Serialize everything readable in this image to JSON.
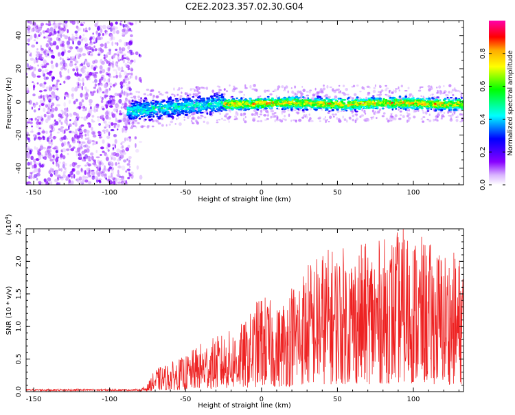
{
  "figure": {
    "title": "C2E2.2023.357.02.30.G04"
  },
  "colors": {
    "snr_line": "#ee2222",
    "colormap": [
      "#ff00ff",
      "#ff0000",
      "#ffaa00",
      "#ffff00",
      "#00ff00",
      "#00ffff",
      "#0000ff",
      "#8800ff",
      "#ffffff"
    ]
  },
  "chart_data": [
    {
      "type": "heatmap",
      "title": "",
      "xlabel": "Height of straight line (km)",
      "ylabel": "Frequency (Hz)",
      "xlim": [
        -155,
        133
      ],
      "ylim": [
        -50,
        49
      ],
      "xticks": [
        "-150",
        "-100",
        "-50",
        "0",
        "50",
        "100"
      ],
      "yticks": [
        "-40",
        "-20",
        "0",
        "20",
        "40"
      ],
      "colorbar": {
        "label": "Normalized spectral amplitude",
        "range": [
          0,
          1
        ],
        "ticks": [
          "0.0",
          "0.2",
          "0.4",
          "0.6",
          "0.8"
        ]
      },
      "regions": [
        {
          "x_range": [
            -155,
            -85
          ],
          "description_value": "scattered low-amplitude noise across all frequencies"
        },
        {
          "x_range": [
            -85,
            -30
          ],
          "frequency_hz": -5,
          "peak_amplitude": 0.45
        },
        {
          "x_range": [
            -30,
            133
          ],
          "frequency_hz": -1,
          "peak_amplitude": 0.9
        }
      ]
    },
    {
      "type": "line",
      "title": "",
      "xlabel": "Height of straight line (km)",
      "ylabel": "SNR (10 * v/v)",
      "y_scale_label": "(x10",
      "y_scale_exp": "4",
      "y_scale_close": ")",
      "xlim": [
        -155,
        133
      ],
      "ylim": [
        0,
        2.5
      ],
      "xticks": [
        "-150",
        "-100",
        "-50",
        "0",
        "50",
        "100"
      ],
      "yticks": [
        "0.0",
        "0.5",
        "1.0",
        "1.5",
        "2.0",
        "2.5"
      ],
      "envelope": [
        {
          "x": -155,
          "y": 0.02
        },
        {
          "x": -80,
          "y": 0.03
        },
        {
          "x": -75,
          "y": 0.12
        },
        {
          "x": -70,
          "y": 0.35
        },
        {
          "x": -60,
          "y": 0.45
        },
        {
          "x": -50,
          "y": 0.55
        },
        {
          "x": -40,
          "y": 0.75
        },
        {
          "x": -30,
          "y": 0.85
        },
        {
          "x": -20,
          "y": 0.95
        },
        {
          "x": -10,
          "y": 1.1
        },
        {
          "x": 0,
          "y": 1.55
        },
        {
          "x": 10,
          "y": 1.3
        },
        {
          "x": 20,
          "y": 1.7
        },
        {
          "x": 30,
          "y": 2.0
        },
        {
          "x": 40,
          "y": 2.2
        },
        {
          "x": 60,
          "y": 2.25
        },
        {
          "x": 80,
          "y": 2.35
        },
        {
          "x": 95,
          "y": 2.55
        },
        {
          "x": 110,
          "y": 2.3
        },
        {
          "x": 133,
          "y": 2.1
        }
      ]
    }
  ]
}
